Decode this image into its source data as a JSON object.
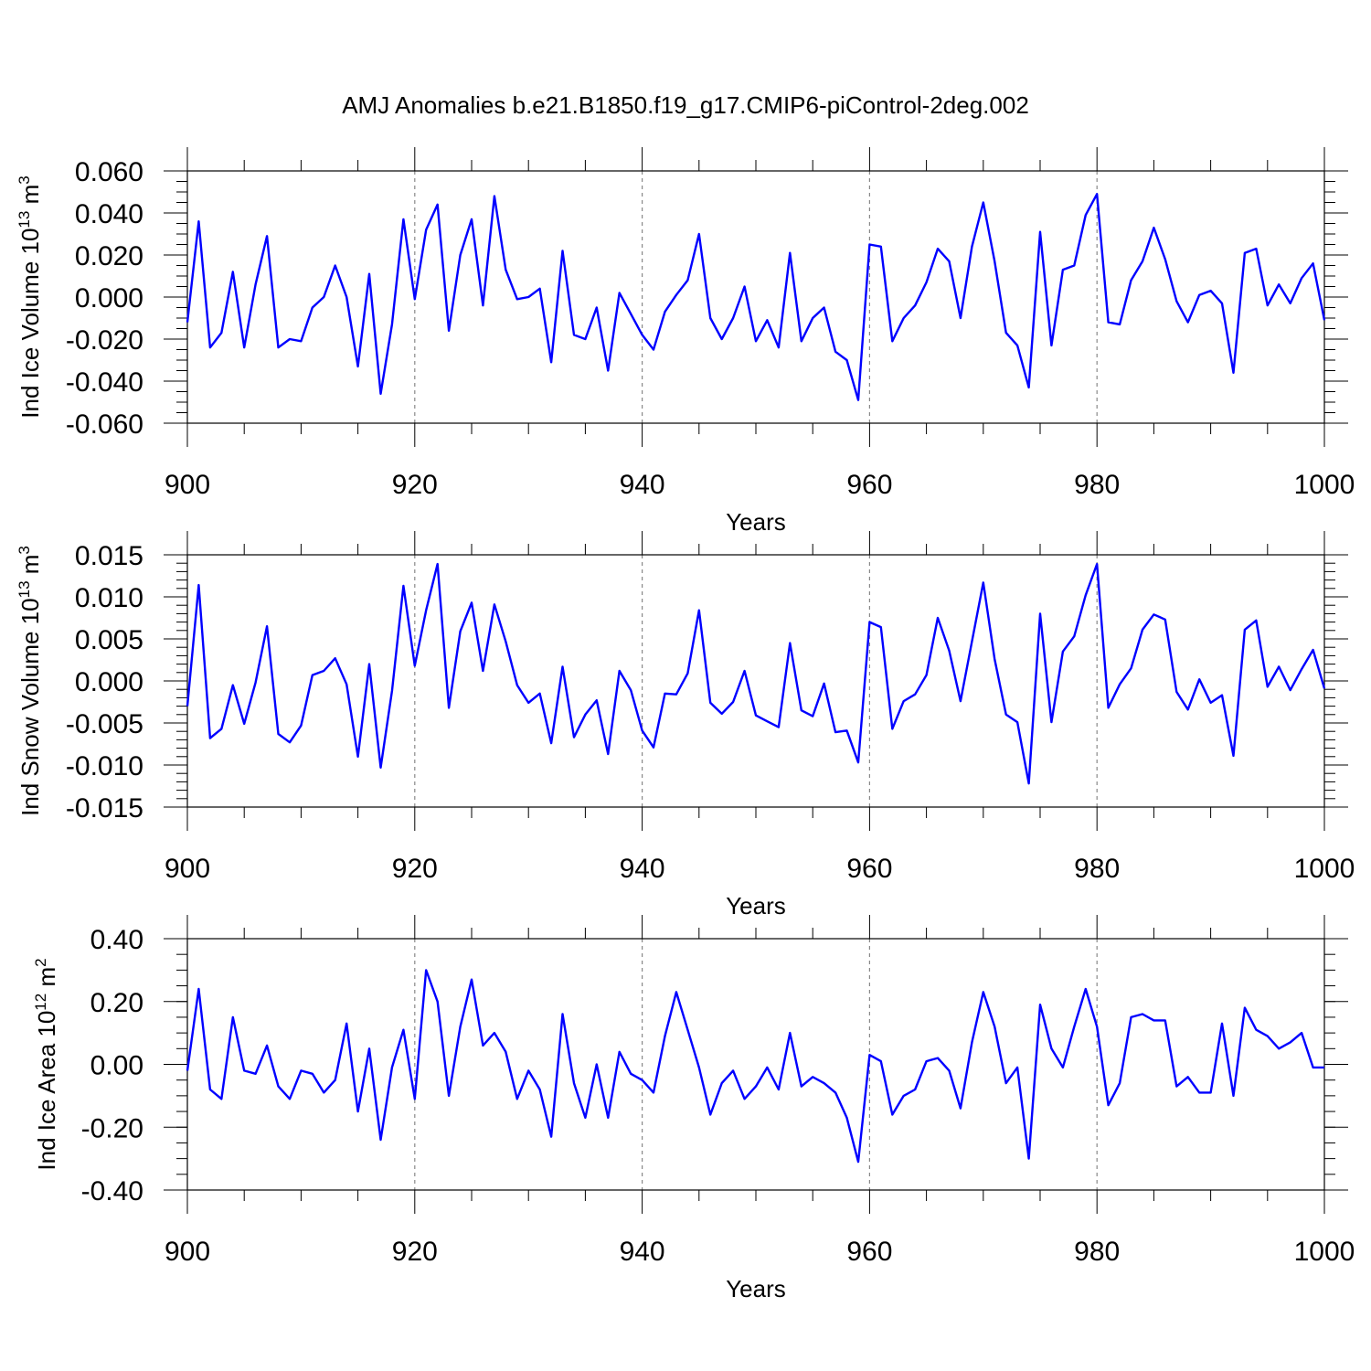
{
  "title": "AMJ Anomalies b.e21.B1850.f19_g17.CMIP6-piControl-2deg.002",
  "line_color": "#0000ff",
  "chart_data": [
    {
      "type": "line",
      "xlabel": "Years",
      "ylabel": {
        "text": "Ind Ice Volume 10",
        "exp": "13",
        "unit": " m",
        "unit_exp": "3"
      },
      "xlim": [
        900,
        1000
      ],
      "ylim": [
        -0.06,
        0.06
      ],
      "xticks": [
        900,
        920,
        940,
        960,
        980,
        1000
      ],
      "xtick_labels": [
        "900",
        "920",
        "940",
        "960",
        "980",
        "1000"
      ],
      "yticks": [
        0.06,
        0.04,
        0.02,
        0.0,
        -0.02,
        -0.04,
        -0.06
      ],
      "ytick_labels": [
        "0.060",
        "0.040",
        "0.020",
        "0.000",
        "-0.020",
        "-0.040",
        "-0.060"
      ],
      "yminor": 0.005,
      "x_start": 900,
      "values": [
        -0.012,
        0.036,
        -0.024,
        -0.017,
        0.012,
        -0.024,
        0.006,
        0.029,
        -0.024,
        -0.02,
        -0.021,
        -0.005,
        0.0,
        0.015,
        0.0,
        -0.033,
        0.011,
        -0.046,
        -0.013,
        0.037,
        -0.001,
        0.032,
        0.044,
        -0.016,
        0.02,
        0.037,
        -0.004,
        0.048,
        0.013,
        -0.001,
        0.0,
        0.004,
        -0.031,
        0.022,
        -0.018,
        -0.02,
        -0.005,
        -0.035,
        0.002,
        -0.008,
        -0.018,
        -0.025,
        -0.007,
        0.001,
        0.008,
        0.03,
        -0.01,
        -0.02,
        -0.01,
        0.005,
        -0.021,
        -0.011,
        -0.024,
        0.021,
        -0.021,
        -0.01,
        -0.005,
        -0.026,
        -0.03,
        -0.049,
        0.025,
        0.024,
        -0.021,
        -0.01,
        -0.004,
        0.007,
        0.023,
        0.017,
        -0.01,
        0.024,
        0.045,
        0.017,
        -0.017,
        -0.023,
        -0.043,
        0.031,
        -0.023,
        0.013,
        0.015,
        0.039,
        0.049,
        -0.012,
        -0.013,
        0.008,
        0.017,
        0.033,
        0.018,
        -0.002,
        -0.012,
        0.001,
        0.003,
        -0.003,
        -0.036,
        0.021,
        0.023,
        -0.004,
        0.006,
        -0.003,
        0.009,
        0.016,
        -0.011
      ]
    },
    {
      "type": "line",
      "xlabel": "Years",
      "ylabel": {
        "text": "Ind Snow Volume 10",
        "exp": "13",
        "unit": " m",
        "unit_exp": "3"
      },
      "xlim": [
        900,
        1000
      ],
      "ylim": [
        -0.015,
        0.015
      ],
      "xticks": [
        900,
        920,
        940,
        960,
        980,
        1000
      ],
      "xtick_labels": [
        "900",
        "920",
        "940",
        "960",
        "980",
        "1000"
      ],
      "yticks": [
        0.015,
        0.01,
        0.005,
        0.0,
        -0.005,
        -0.01,
        -0.015
      ],
      "ytick_labels": [
        "0.015",
        "0.010",
        "0.005",
        "0.000",
        "-0.005",
        "-0.010",
        "-0.015"
      ],
      "yminor": 0.001,
      "x_start": 900,
      "values": [
        -0.003,
        0.0114,
        -0.0068,
        -0.0057,
        -0.0005,
        -0.0051,
        -0.0002,
        0.0065,
        -0.0063,
        -0.0073,
        -0.0053,
        0.0007,
        0.0012,
        0.0027,
        -0.0004,
        -0.009,
        0.002,
        -0.0103,
        -0.0012,
        0.0113,
        0.0018,
        0.0084,
        0.0139,
        -0.0032,
        0.0059,
        0.0093,
        0.0012,
        0.0091,
        0.0047,
        -0.0005,
        -0.0026,
        -0.0015,
        -0.0074,
        0.0017,
        -0.0067,
        -0.004,
        -0.0023,
        -0.0087,
        0.0012,
        -0.0011,
        -0.0059,
        -0.0079,
        -0.0015,
        -0.0016,
        0.0009,
        0.0084,
        -0.0026,
        -0.0039,
        -0.0025,
        0.0012,
        -0.0041,
        -0.0048,
        -0.0055,
        0.0045,
        -0.0035,
        -0.0042,
        -0.0003,
        -0.0061,
        -0.0059,
        -0.0097,
        0.007,
        0.0064,
        -0.0057,
        -0.0024,
        -0.0016,
        0.0007,
        0.0075,
        0.0036,
        -0.0024,
        0.0047,
        0.0117,
        0.0026,
        -0.004,
        -0.0049,
        -0.0122,
        0.008,
        -0.0049,
        0.0035,
        0.0053,
        0.0102,
        0.0139,
        -0.0032,
        -0.0004,
        0.0015,
        0.0061,
        0.0079,
        0.0073,
        -0.0013,
        -0.0034,
        0.0002,
        -0.0026,
        -0.0017,
        -0.0089,
        0.0061,
        0.0072,
        -0.0007,
        0.0017,
        -0.0011,
        0.0014,
        0.0037,
        -0.0009
      ]
    },
    {
      "type": "line",
      "xlabel": "Years",
      "ylabel": {
        "text": "Ind Ice Area 10",
        "exp": "12",
        "unit": " m",
        "unit_exp": "2"
      },
      "xlim": [
        900,
        1000
      ],
      "ylim": [
        -0.4,
        0.4
      ],
      "xticks": [
        900,
        920,
        940,
        960,
        980,
        1000
      ],
      "xtick_labels": [
        "900",
        "920",
        "940",
        "960",
        "980",
        "1000"
      ],
      "yticks": [
        0.4,
        0.2,
        0.0,
        -0.2,
        -0.4
      ],
      "ytick_labels": [
        "0.40",
        "0.20",
        "0.00",
        "-0.20",
        "-0.40"
      ],
      "yminor": 0.05,
      "x_start": 900,
      "values": [
        -0.02,
        0.24,
        -0.08,
        -0.11,
        0.15,
        -0.02,
        -0.03,
        0.06,
        -0.07,
        -0.11,
        -0.02,
        -0.03,
        -0.09,
        -0.05,
        0.13,
        -0.15,
        0.05,
        -0.24,
        -0.01,
        0.11,
        -0.11,
        0.3,
        0.2,
        -0.1,
        0.12,
        0.27,
        0.06,
        0.1,
        0.04,
        -0.11,
        -0.02,
        -0.08,
        -0.23,
        0.16,
        -0.06,
        -0.17,
        0.0,
        -0.17,
        0.04,
        -0.03,
        -0.05,
        -0.09,
        0.09,
        0.23,
        0.11,
        -0.01,
        -0.16,
        -0.06,
        -0.02,
        -0.11,
        -0.07,
        -0.01,
        -0.08,
        0.1,
        -0.07,
        -0.04,
        -0.06,
        -0.09,
        -0.17,
        -0.31,
        0.03,
        0.01,
        -0.16,
        -0.1,
        -0.08,
        0.01,
        0.02,
        -0.02,
        -0.14,
        0.07,
        0.23,
        0.12,
        -0.06,
        -0.01,
        -0.3,
        0.19,
        0.05,
        -0.01,
        0.12,
        0.24,
        0.12,
        -0.13,
        -0.06,
        0.15,
        0.16,
        0.14,
        0.14,
        -0.07,
        -0.04,
        -0.09,
        -0.09,
        0.13,
        -0.1,
        0.18,
        0.11,
        0.09,
        0.05,
        0.07,
        0.1,
        -0.01,
        -0.01
      ]
    }
  ]
}
